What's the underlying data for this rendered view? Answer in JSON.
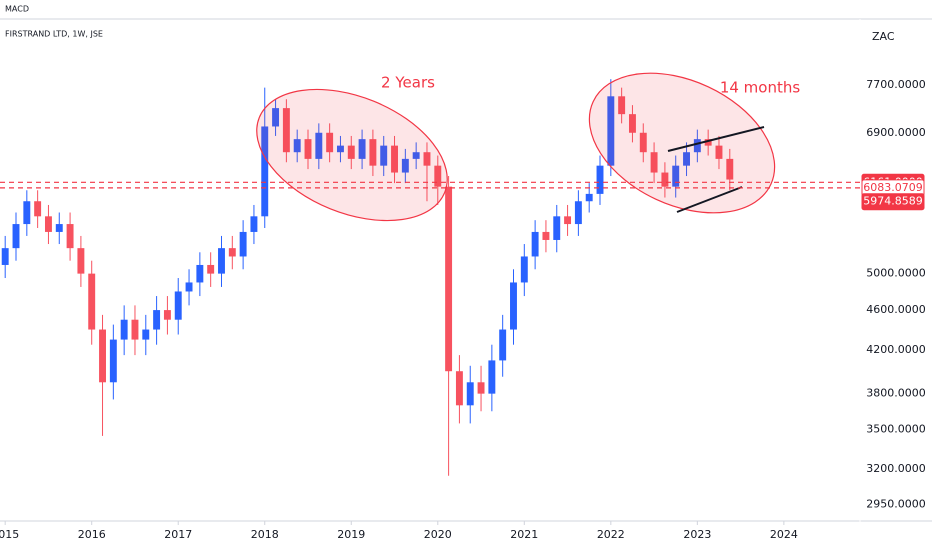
{
  "chart_data": {
    "type": "candlestick",
    "indicator": "MACD",
    "title": "FIRSTRAND LTD, 1W, JSE",
    "currency": "ZAC",
    "annotations": [
      "2 Years",
      "14 months"
    ],
    "log_scale": true,
    "up_color": "#2962ff",
    "down_color": "#f7525f",
    "xlim": [
      2014.94,
      2024.88
    ],
    "xticks": [
      2015,
      2016,
      2017,
      2018,
      2019,
      2020,
      2021,
      2022,
      2023,
      2024
    ],
    "ylim": [
      2840,
      8950
    ],
    "yticks": [
      {
        "value": 2950,
        "label": "2950.0000"
      },
      {
        "value": 3200,
        "label": "3200.0000"
      },
      {
        "value": 3500,
        "label": "3500.0000"
      },
      {
        "value": 3800,
        "label": "3800.0000"
      },
      {
        "value": 4200,
        "label": "4200.0000"
      },
      {
        "value": 4600,
        "label": "4600.0000"
      },
      {
        "value": 5000,
        "label": "5000.0000"
      },
      {
        "value": 6900,
        "label": "6900.0000"
      },
      {
        "value": 7700,
        "label": "7700.0000"
      }
    ],
    "price_lines": [
      {
        "value": 6161,
        "label": "6161.0000",
        "dashed": true,
        "filled": true
      },
      {
        "value": 6083.0709,
        "label": "6083.0709",
        "dashed": true,
        "filled": false
      },
      {
        "value": 5974.8589,
        "label": "5974.8589",
        "dashed": false,
        "filled": true
      }
    ],
    "x": [
      2015,
      2015.125,
      2015.25,
      2015.375,
      2015.5,
      2015.625,
      2015.75,
      2015.875,
      2016,
      2016.125,
      2016.25,
      2016.375,
      2016.5,
      2016.625,
      2016.75,
      2016.875,
      2017,
      2017.125,
      2017.25,
      2017.375,
      2017.5,
      2017.625,
      2017.75,
      2017.875,
      2018,
      2018.125,
      2018.25,
      2018.375,
      2018.5,
      2018.625,
      2018.75,
      2018.875,
      2019,
      2019.125,
      2019.25,
      2019.375,
      2019.5,
      2019.625,
      2019.75,
      2019.875,
      2020,
      2020.125,
      2020.25,
      2020.375,
      2020.5,
      2020.625,
      2020.75,
      2020.875,
      2021,
      2021.125,
      2021.25,
      2021.375,
      2021.5,
      2021.625,
      2021.75,
      2021.875,
      2022,
      2022.125,
      2022.25,
      2022.375,
      2022.5,
      2022.625,
      2022.75,
      2022.875,
      2023,
      2023.125,
      2023.25,
      2023.375
    ],
    "open": [
      5100,
      5300,
      5600,
      5900,
      5700,
      5500,
      5600,
      5300,
      5000,
      4400,
      3900,
      4300,
      4500,
      4300,
      4400,
      4600,
      4500,
      4800,
      4900,
      5100,
      5000,
      5300,
      5200,
      5500,
      5700,
      7000,
      7300,
      6600,
      6800,
      6500,
      6900,
      6600,
      6700,
      6500,
      6800,
      6400,
      6700,
      6300,
      6500,
      6600,
      6400,
      6100,
      4000,
      3700,
      3900,
      3800,
      4100,
      4400,
      4900,
      5200,
      5500,
      5400,
      5700,
      5600,
      5900,
      6000,
      6400,
      7500,
      7200,
      6900,
      6600,
      6300,
      6100,
      6400,
      6600,
      6800,
      6700,
      6500
    ],
    "high": [
      5450,
      5750,
      6050,
      6050,
      5850,
      5750,
      5750,
      5450,
      5150,
      4550,
      4450,
      4650,
      4650,
      4550,
      4750,
      4750,
      4950,
      5050,
      5250,
      5250,
      5450,
      5450,
      5650,
      5850,
      7650,
      7450,
      7450,
      6950,
      6950,
      7050,
      7050,
      6850,
      6850,
      6950,
      6950,
      6850,
      6850,
      6650,
      6750,
      6750,
      6550,
      6250,
      4150,
      4050,
      4050,
      4250,
      4550,
      5050,
      5350,
      5650,
      5650,
      5850,
      5850,
      6050,
      6150,
      6550,
      7800,
      7650,
      7350,
      7050,
      6750,
      6450,
      6550,
      6750,
      6950,
      6950,
      6850,
      6650
    ],
    "low": [
      4950,
      5150,
      5450,
      5550,
      5350,
      5350,
      5150,
      4850,
      4250,
      3450,
      3750,
      4150,
      4150,
      4150,
      4250,
      4350,
      4350,
      4650,
      4750,
      4850,
      4850,
      5050,
      5050,
      5350,
      5550,
      6850,
      6450,
      6450,
      6350,
      6350,
      6450,
      6450,
      6350,
      6350,
      6250,
      6250,
      6150,
      6150,
      6350,
      5900,
      5850,
      3150,
      3550,
      3550,
      3650,
      3650,
      3950,
      4250,
      4750,
      5050,
      5250,
      5250,
      5450,
      5450,
      5750,
      5850,
      6250,
      7050,
      6750,
      6450,
      6150,
      5950,
      5950,
      6250,
      6450,
      6550,
      6350,
      6050
    ],
    "close": [
      5300,
      5600,
      5900,
      5700,
      5500,
      5600,
      5300,
      5000,
      4400,
      3900,
      4300,
      4500,
      4300,
      4400,
      4600,
      4500,
      4800,
      4900,
      5100,
      5000,
      5300,
      5200,
      5500,
      5700,
      7000,
      7300,
      6600,
      6800,
      6500,
      6900,
      6600,
      6700,
      6500,
      6800,
      6400,
      6700,
      6300,
      6500,
      6600,
      6400,
      6100,
      4000,
      3700,
      3900,
      3800,
      4100,
      4400,
      4900,
      5200,
      5500,
      5400,
      5700,
      5600,
      5900,
      6000,
      6400,
      7500,
      7200,
      6900,
      6600,
      6300,
      6100,
      6400,
      6600,
      6800,
      6700,
      6500,
      6200
    ]
  }
}
